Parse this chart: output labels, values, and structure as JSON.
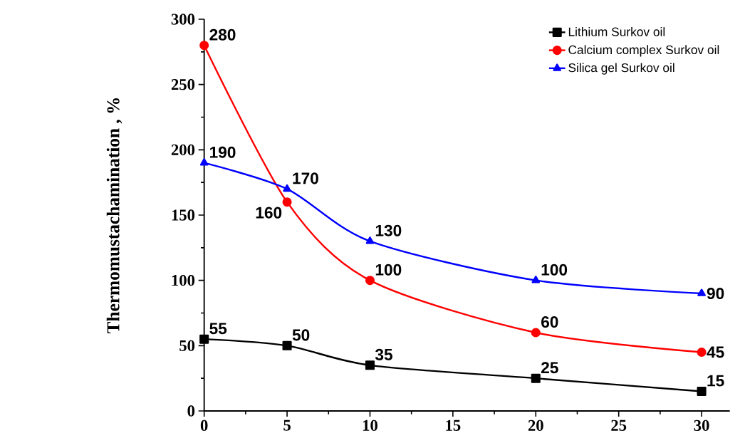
{
  "chart_data": {
    "type": "line",
    "ylabel": "Thermomustachamination , %",
    "x": [
      0,
      5,
      10,
      20,
      30
    ],
    "xlim": [
      0,
      31.7
    ],
    "xticks": [
      0,
      5,
      10,
      15,
      20,
      25,
      30
    ],
    "ylim": [
      0,
      300
    ],
    "yticks": [
      0,
      50,
      100,
      150,
      200,
      250,
      300
    ],
    "series": [
      {
        "name": "Lithium Surkov oil",
        "color": "#000000",
        "marker": "square",
        "values": [
          55,
          50,
          35,
          25,
          15
        ]
      },
      {
        "name": "Calcium complex Surkov oil",
        "color": "#ff0000",
        "marker": "circle",
        "values": [
          280,
          160,
          100,
          60,
          45
        ]
      },
      {
        "name": "Silica gel Surkov oil",
        "color": "#0000ff",
        "marker": "triangle",
        "values": [
          190,
          170,
          130,
          100,
          90
        ]
      }
    ],
    "data_labels": true,
    "grid": false,
    "legend": "top right",
    "line_style": "solid"
  }
}
